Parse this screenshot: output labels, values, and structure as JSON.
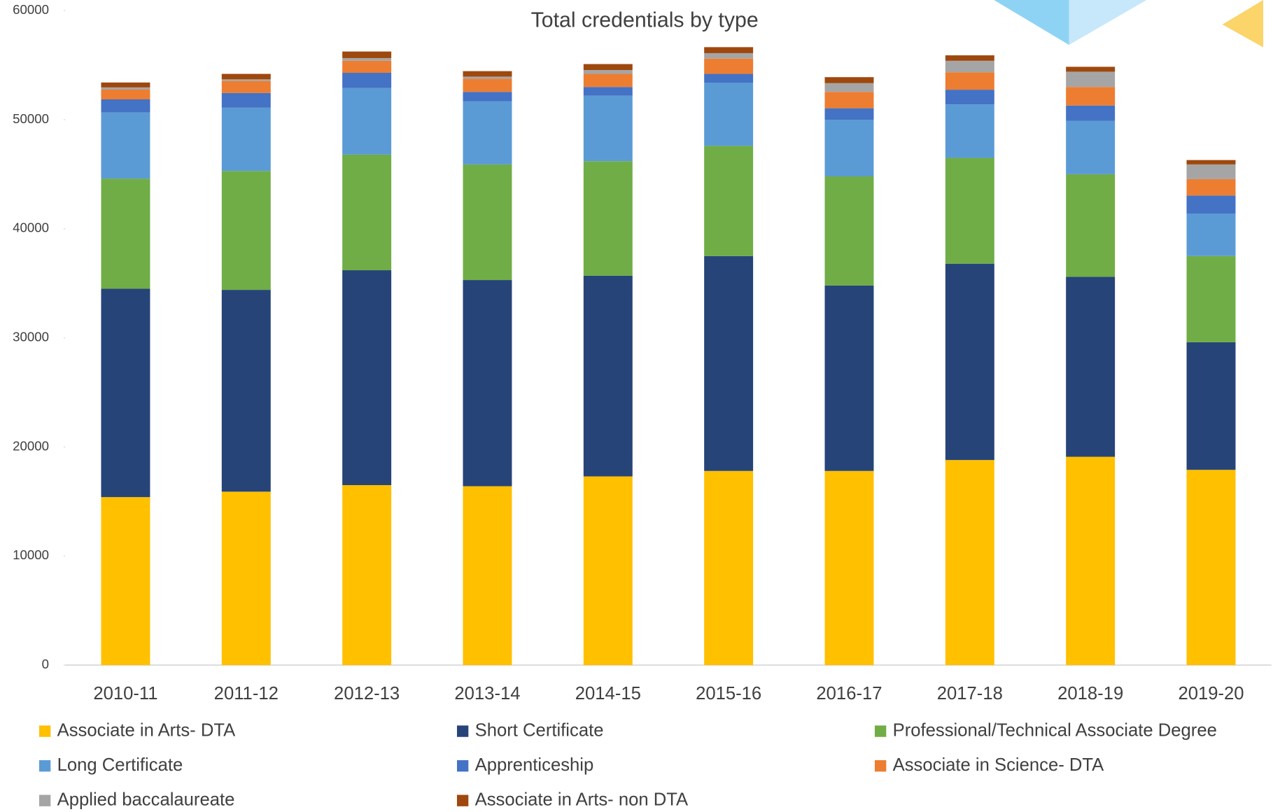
{
  "chart_data": {
    "type": "stacked_bar",
    "title": "Total credentials by type",
    "categories": [
      "2010-11",
      "2011-12",
      "2012-13",
      "2013-14",
      "2014-15",
      "2015-16",
      "2016-17",
      "2017-18",
      "2018-19",
      "2019-20"
    ],
    "series": [
      {
        "name": "Associate in Arts- DTA",
        "color": "#ffc000",
        "values": [
          15400,
          15900,
          16500,
          16400,
          17300,
          17800,
          17800,
          18800,
          19100,
          17900
        ]
      },
      {
        "name": "Short Certificate",
        "color": "#264478",
        "values": [
          19100,
          18500,
          19700,
          18900,
          18400,
          19700,
          17000,
          18000,
          16500,
          11700
        ]
      },
      {
        "name": "Professional/Technical Associate Degree",
        "color": "#70ad47",
        "values": [
          10100,
          10900,
          10600,
          10600,
          10500,
          10100,
          10000,
          9700,
          9400,
          7900
        ]
      },
      {
        "name": "Long Certificate",
        "color": "#5b9bd5",
        "values": [
          6060,
          5800,
          6100,
          5800,
          6000,
          5800,
          5200,
          4900,
          4900,
          3900
        ]
      },
      {
        "name": "Apprenticeship",
        "color": "#4472c4",
        "values": [
          1200,
          1350,
          1400,
          850,
          800,
          800,
          1050,
          1350,
          1400,
          1650
        ]
      },
      {
        "name": "Associate in Science- DTA",
        "color": "#ed7d31",
        "values": [
          900,
          1100,
          1100,
          1200,
          1200,
          1400,
          1500,
          1600,
          1700,
          1500
        ]
      },
      {
        "name": "Applied baccalaureate",
        "color": "#a5a5a5",
        "values": [
          200,
          150,
          250,
          200,
          350,
          500,
          800,
          1050,
          1400,
          1350
        ]
      },
      {
        "name": "Associate in Arts- non DTA",
        "color": "#9e480e",
        "values": [
          450,
          500,
          600,
          500,
          550,
          550,
          550,
          500,
          450,
          400
        ]
      }
    ],
    "ylim": [
      0,
      60000
    ],
    "yticks": [
      0,
      10000,
      20000,
      30000,
      40000,
      50000,
      60000
    ]
  }
}
